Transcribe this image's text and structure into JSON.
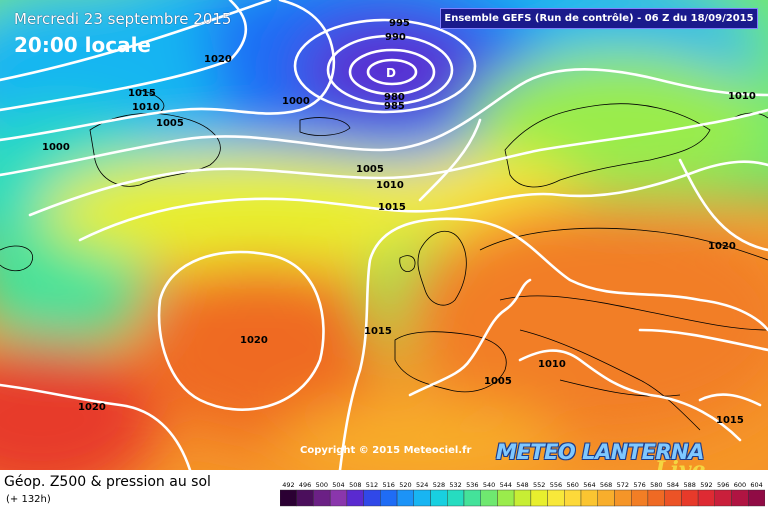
{
  "header": {
    "date": "Mercredi 23 septembre 2015",
    "time": "20:00 locale",
    "run": "Ensemble GEFS  (Run de contrôle)  -  06 Z du 18/09/2015"
  },
  "map": {
    "region": "North Atlantic & Europe",
    "low_center_label": "D",
    "isobar_labels": [
      {
        "id": "i995",
        "text": "995"
      },
      {
        "id": "i990",
        "text": "990"
      },
      {
        "id": "i980",
        "text": "980"
      },
      {
        "id": "i985",
        "text": "985"
      },
      {
        "id": "i1020a",
        "text": "1020"
      },
      {
        "id": "i1015a",
        "text": "1015"
      },
      {
        "id": "i1010a",
        "text": "1010"
      },
      {
        "id": "i1005a",
        "text": "1005"
      },
      {
        "id": "i1000a",
        "text": "1000"
      },
      {
        "id": "i1000b",
        "text": "1000"
      },
      {
        "id": "i1005b",
        "text": "1005"
      },
      {
        "id": "i1010b",
        "text": "1010"
      },
      {
        "id": "i1015b",
        "text": "1015"
      },
      {
        "id": "i1010c",
        "text": "1010"
      },
      {
        "id": "i1020b",
        "text": "1020"
      },
      {
        "id": "i1020c",
        "text": "1020"
      },
      {
        "id": "i1015c",
        "text": "1015"
      },
      {
        "id": "i1005c",
        "text": "1005"
      },
      {
        "id": "i1010d",
        "text": "1010"
      },
      {
        "id": "i1020d",
        "text": "1020"
      },
      {
        "id": "i1015d",
        "text": "1015"
      }
    ]
  },
  "copyright": "Copyright © 2015 Meteociel.fr",
  "brand": {
    "name": "METEO LANTERNA",
    "script": "Live"
  },
  "footer": {
    "title": "Géop. Z500 & pression au sol",
    "subtitle": "(+ 132h)"
  },
  "scale": {
    "values": [
      "492",
      "496",
      "500",
      "504",
      "508",
      "512",
      "516",
      "520",
      "524",
      "528",
      "532",
      "536",
      "540",
      "544",
      "548",
      "552",
      "556",
      "560",
      "564",
      "568",
      "572",
      "576",
      "580",
      "584",
      "588",
      "592",
      "596",
      "600",
      "604"
    ],
    "colors": [
      "#2b0033",
      "#4b0f5c",
      "#6b2085",
      "#8a36ac",
      "#5a2ad0",
      "#3048e8",
      "#1f6cf5",
      "#1c93f7",
      "#18b5f2",
      "#18d0e0",
      "#26dcc0",
      "#44e29a",
      "#6fe870",
      "#9aec4c",
      "#c7ee34",
      "#e8ef2e",
      "#f8e83a",
      "#fdd93a",
      "#fbc531",
      "#f8ae2c",
      "#f59528",
      "#f27e25",
      "#ef6a24",
      "#ec5326",
      "#e73a2a",
      "#de2a33",
      "#c91f3b",
      "#b01442",
      "#900b45"
    ]
  }
}
